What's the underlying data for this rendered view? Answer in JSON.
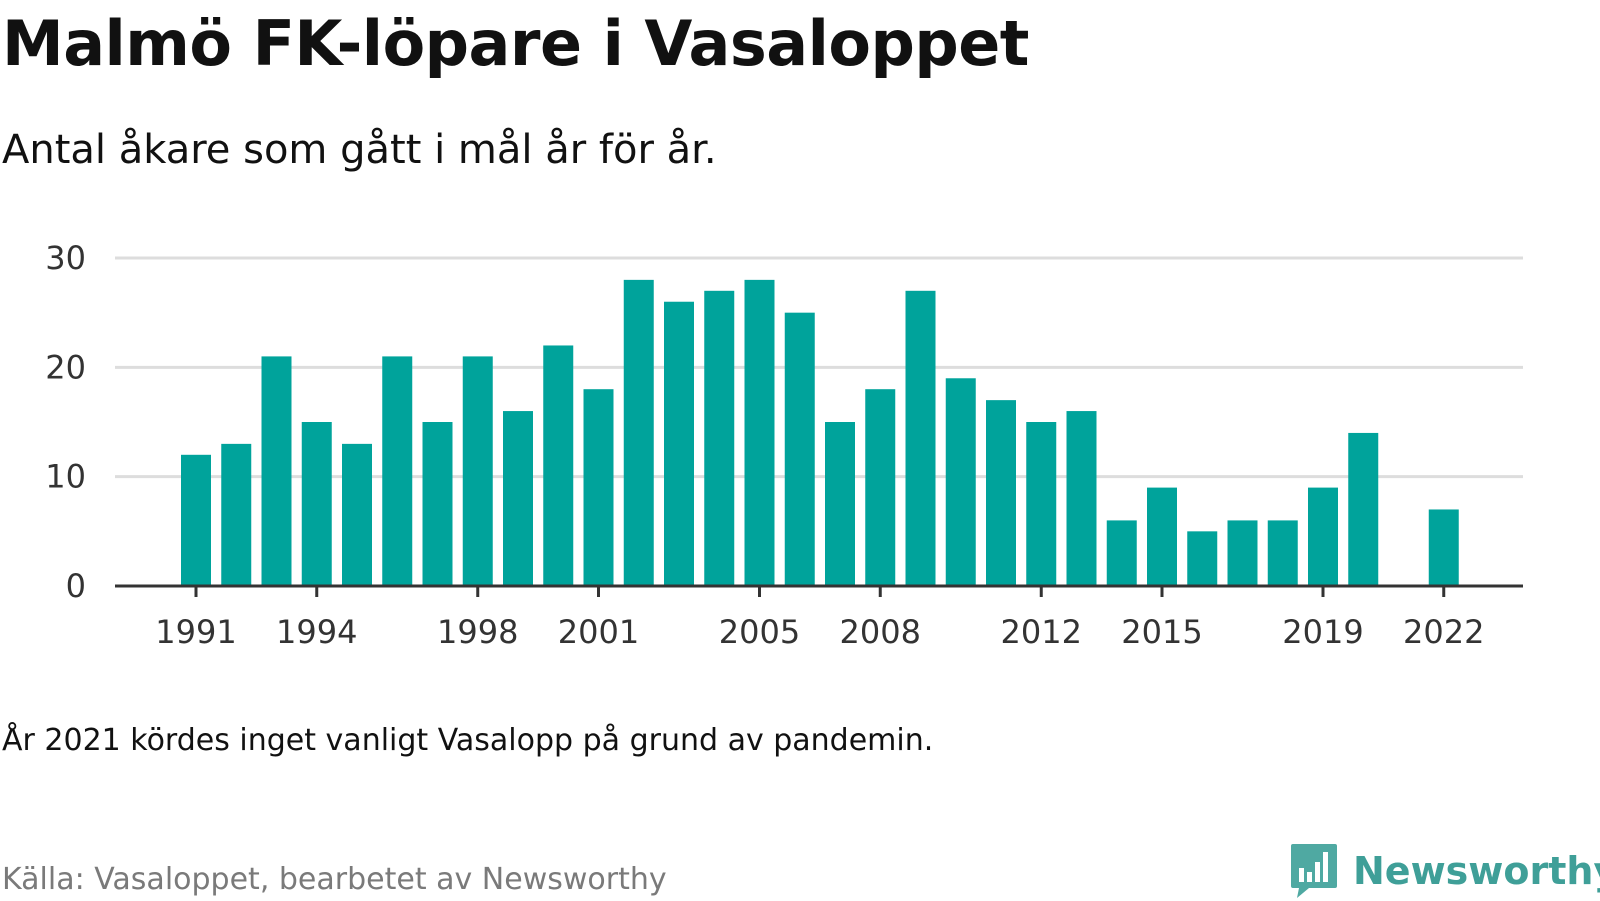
{
  "title": "Malmö FK-löpare i Vasaloppet",
  "subtitle": "Antal åkare som gått i mål år för år.",
  "note": "År 2021 kördes inget vanligt Vasalopp på grund av pandemin.",
  "source": "Källa: Vasaloppet, bearbetet av Newsworthy",
  "logo_text": "Newsworthy",
  "colors": {
    "bar": "#00a39b",
    "gridline": "#dddddd",
    "axis": "#333333",
    "logo": "#3f9f98",
    "source_text": "#7a7a7a"
  },
  "chart_data": {
    "type": "bar",
    "categories": [
      "1991",
      "1992",
      "1993",
      "1994",
      "1995",
      "1996",
      "1997",
      "1998",
      "1999",
      "2000",
      "2001",
      "2002",
      "2003",
      "2004",
      "2005",
      "2006",
      "2007",
      "2008",
      "2009",
      "2010",
      "2011",
      "2012",
      "2013",
      "2014",
      "2015",
      "2016",
      "2017",
      "2018",
      "2019",
      "2020",
      "2021",
      "2022"
    ],
    "values": [
      12,
      13,
      21,
      15,
      13,
      21,
      15,
      21,
      16,
      22,
      18,
      28,
      26,
      27,
      28,
      25,
      15,
      18,
      27,
      19,
      17,
      15,
      16,
      6,
      9,
      5,
      6,
      6,
      9,
      14,
      0,
      7
    ],
    "x_tick_labels": [
      "1991",
      "1994",
      "1998",
      "2001",
      "2005",
      "2008",
      "2012",
      "2015",
      "2019",
      "2022"
    ],
    "y_ticks": [
      0,
      10,
      20,
      30
    ],
    "ylim": [
      0,
      30
    ],
    "grid": true,
    "legend": false
  }
}
